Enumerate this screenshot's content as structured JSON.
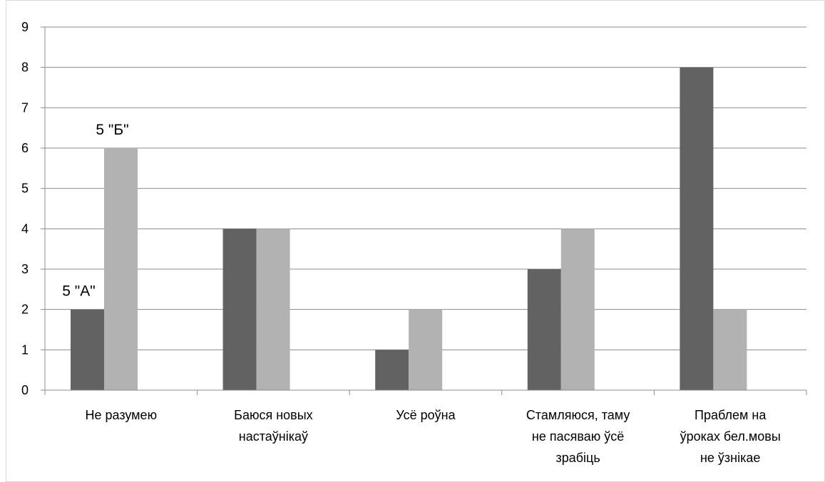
{
  "chart_data": {
    "type": "bar",
    "categories": [
      [
        "Не разумею"
      ],
      [
        "Баюся новых",
        "настаўнікаў"
      ],
      [
        "Усё роўна"
      ],
      [
        "Стамляюся, таму",
        "не пасяваю ўсё",
        "зрабіць"
      ],
      [
        "Праблем на",
        "ўроках бел.мовы",
        "не ўзнікае"
      ]
    ],
    "series": [
      {
        "name": "5 \"А\"",
        "color": "#626262",
        "values": [
          2,
          4,
          1,
          3,
          8
        ]
      },
      {
        "name": "5 \"Б\"",
        "color": "#b2b2b2",
        "values": [
          6,
          4,
          2,
          4,
          2
        ]
      }
    ],
    "ylim": [
      0,
      9
    ],
    "yticks": [
      "0",
      "1",
      "2",
      "3",
      "4",
      "5",
      "6",
      "7",
      "8",
      "9"
    ],
    "grid": true,
    "legend": "none"
  }
}
